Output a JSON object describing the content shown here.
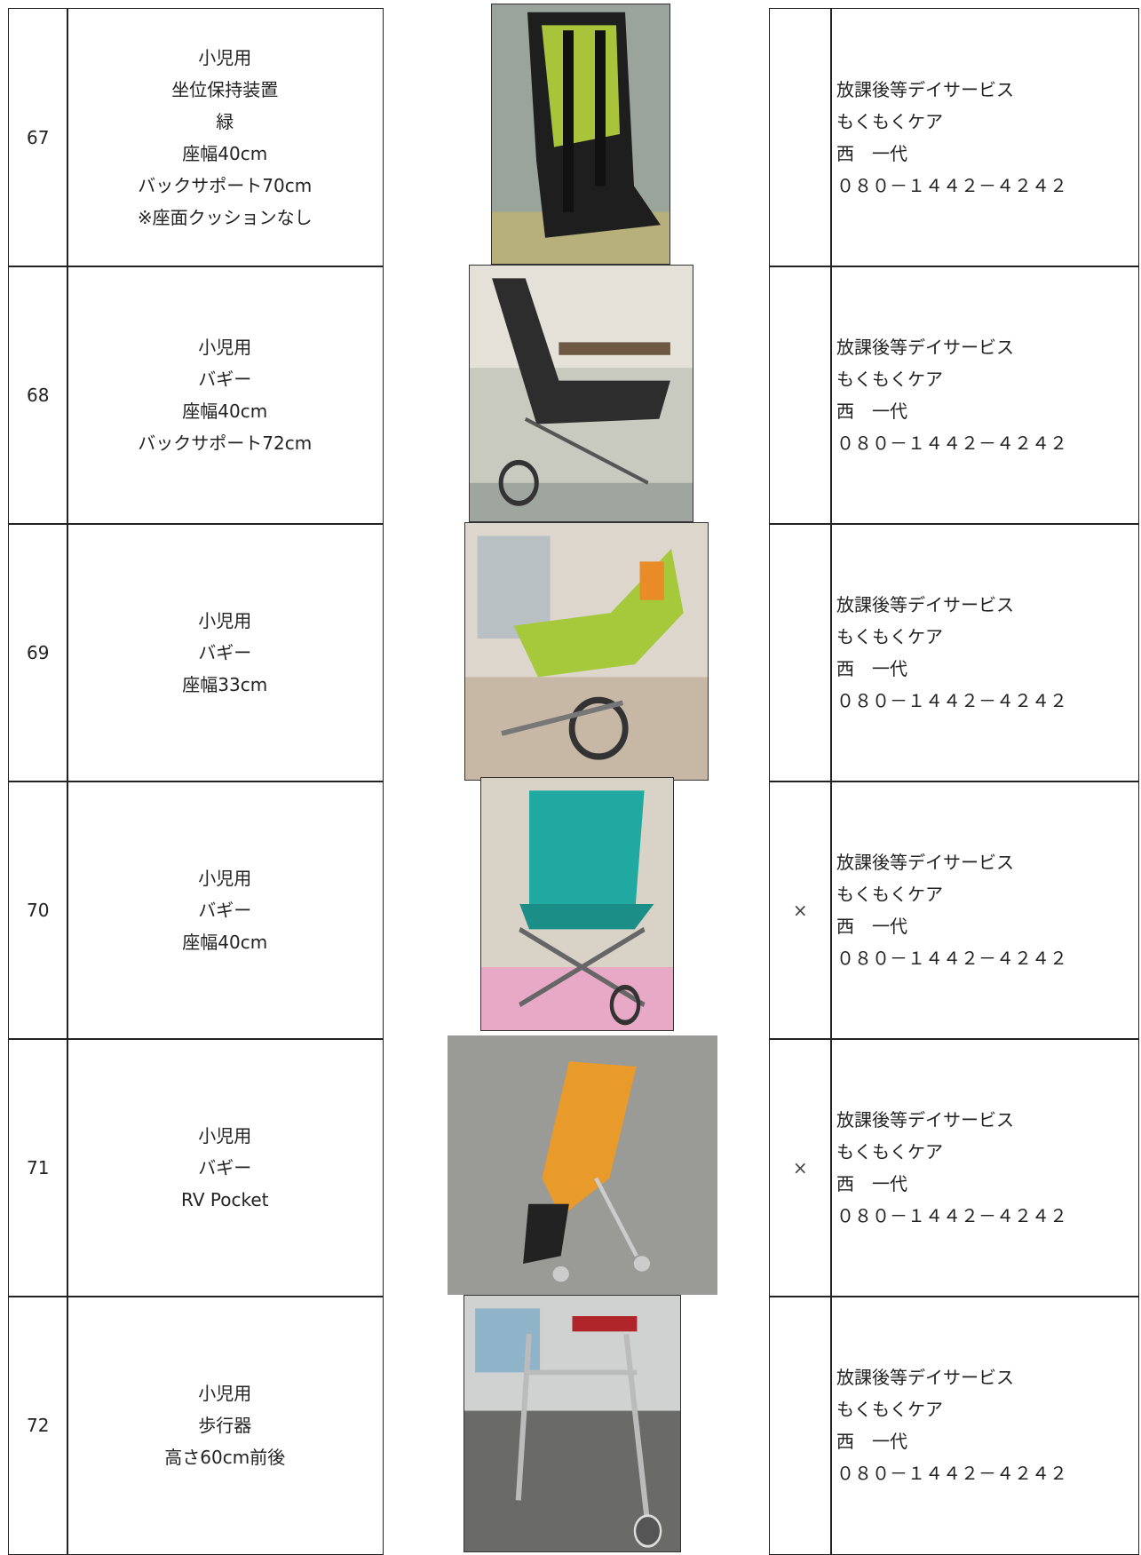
{
  "table": {
    "rows": [
      {
        "number": "67",
        "description": [
          "小児用",
          "坐位保持装置",
          "緑",
          "座幅40cm",
          "バックサポート70cm",
          "※座面クッションなし"
        ],
        "contact": [
          "放課後等デイサービス",
          "もくもくケア",
          "西　一代",
          "０８０－１４４２－４２４２"
        ]
      },
      {
        "number": "68",
        "description": [
          "小児用",
          "バギー",
          "座幅40cm",
          "バックサポート72cm"
        ],
        "contact": [
          "放課後等デイサービス",
          "もくもくケア",
          "西　一代",
          "０８０－１４４２－４２４２"
        ]
      },
      {
        "number": "69",
        "description": [
          "小児用",
          "バギー",
          "座幅33cm"
        ],
        "contact": [
          "放課後等デイサービス",
          "もくもくケア",
          "西　一代",
          "０８０－１４４２－４２４２"
        ]
      },
      {
        "number": "70",
        "description": [
          "小児用",
          "バギー",
          "座幅40cm"
        ],
        "mark": "×",
        "contact": [
          "放課後等デイサービス",
          "もくもくケア",
          "西　一代",
          "０８０－１４４２－４２４２"
        ]
      },
      {
        "number": "71",
        "description": [
          "小児用",
          "バギー",
          "RV Pocket"
        ],
        "mark": "×",
        "contact": [
          "放課後等デイサービス",
          "もくもくケア",
          "西　一代",
          "０８０－１４４２－４２４２"
        ]
      },
      {
        "number": "72",
        "description": [
          "小児用",
          "歩行器",
          "高さ60cm前後"
        ],
        "contact": [
          "放課後等デイサービス",
          "もくもくケア",
          "西　一代",
          "０８０－１４４２－４２４２"
        ]
      }
    ]
  }
}
